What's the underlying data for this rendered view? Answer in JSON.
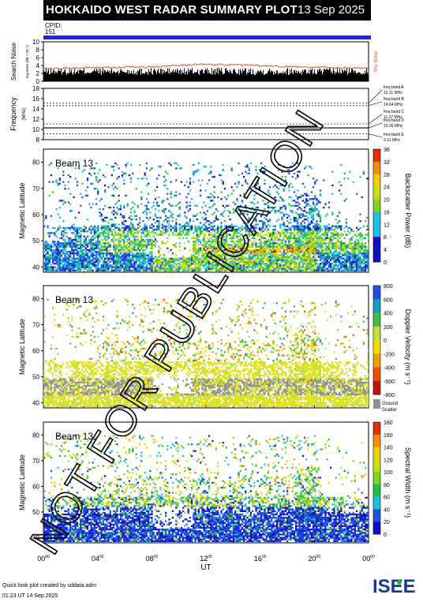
{
  "header": {
    "title": "HOKKAIDO WEST RADAR SUMMARY PLOT",
    "date": "13 Sep 2025",
    "cpid_label": "CPID:",
    "cpid_value": "151"
  },
  "noise_panel": {
    "ylabel": "Search Noise",
    "ylabel_small": "log-noise (dB × 10⁻¹)",
    "legend": "Sky Noise",
    "yticks": [
      "10",
      "8",
      "6",
      "4",
      "2",
      "0"
    ]
  },
  "freq_panel": {
    "ylabel": "Frequency",
    "unit": "(MHz)",
    "yticks": [
      "18",
      "16",
      "14",
      "12",
      "10",
      "8"
    ],
    "bands": [
      {
        "name": "freq band A",
        "value": "15.11 MHz"
      },
      {
        "name": "freq band B",
        "value": "14.64 MHz"
      },
      {
        "name": "freq band C",
        "value": "11.07 MHz"
      },
      {
        "name": "freq band D",
        "value": "10.30 MHz"
      },
      {
        "name": "freq band E",
        "value": "9.11 MHz"
      }
    ]
  },
  "panels": [
    {
      "beam": "Beam 13",
      "ylabel": "Magnetic Latitude",
      "cbar_label": "Backscatter Power (dB)",
      "cbar_ticks": [
        "36",
        "32",
        "28",
        "24",
        "20",
        "16",
        "12",
        "8",
        "4",
        "0"
      ]
    },
    {
      "beam": "Beam 13",
      "ylabel": "Magnetic Latitude",
      "cbar_label": "Doppler Velocity (m s⁻¹)",
      "cbar_ticks": [
        "800",
        "600",
        "400",
        "200",
        "0",
        "-200",
        "-400",
        "-600",
        "-800"
      ],
      "ground": "Ground",
      "scatter": "Scatter"
    },
    {
      "beam": "Beam 13",
      "ylabel": "Magnetic Latitude",
      "cbar_label": "Spectral Width (m s⁻¹)",
      "cbar_ticks": [
        "180",
        "160",
        "140",
        "120",
        "100",
        "80",
        "60",
        "40",
        "20",
        "0"
      ]
    }
  ],
  "lat_ticks": [
    "80",
    "70",
    "60",
    "50",
    "40"
  ],
  "xaxis": {
    "label": "UT",
    "ticks": [
      "00",
      "04",
      "08",
      "12",
      "16",
      "20",
      "00"
    ],
    "tick_sup": "00"
  },
  "watermark": "NOT FOR PUBLICATION",
  "footer": {
    "line1": "Quick look plot created by sddata.adm",
    "line2": "01:23 UT 14 Sep 2025"
  },
  "logo": "ISEE",
  "colors": {
    "cpid_bar": "#2222ee",
    "sky_noise": "#e05020",
    "search_noise": "#000000"
  },
  "chart_data": [
    {
      "type": "line",
      "title": "Search Noise",
      "series": [
        {
          "name": "Sky Noise",
          "x_hours": [
            0,
            4,
            8,
            12,
            16,
            20,
            24
          ],
          "values": [
            3.2,
            3.5,
            3.6,
            4.4,
            3.9,
            3.6,
            3.3
          ]
        }
      ],
      "ylim": [
        0,
        10
      ],
      "xlim": [
        0,
        24
      ]
    },
    {
      "type": "line",
      "title": "Frequency",
      "ylim": [
        8,
        18
      ],
      "reference_lines_MHz": [
        15.11,
        14.64,
        11.07,
        10.3,
        9.11
      ]
    },
    {
      "type": "heatmap",
      "title": "Backscatter Power (dB)",
      "xlim": [
        0,
        24
      ],
      "ylim": [
        38,
        85
      ],
      "clim": [
        0,
        36
      ]
    },
    {
      "type": "heatmap",
      "title": "Doppler Velocity (m s⁻¹)",
      "xlim": [
        0,
        24
      ],
      "ylim": [
        38,
        85
      ],
      "clim": [
        -800,
        800
      ]
    },
    {
      "type": "heatmap",
      "title": "Spectral Width (m s⁻¹)",
      "xlim": [
        0,
        24
      ],
      "ylim": [
        38,
        85
      ],
      "clim": [
        0,
        180
      ]
    }
  ]
}
